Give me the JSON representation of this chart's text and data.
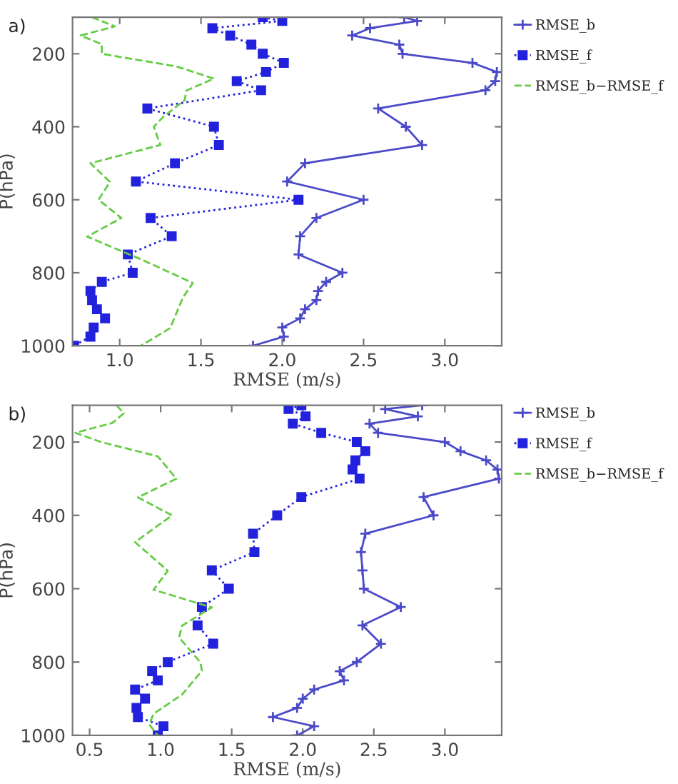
{
  "chart_data": [
    {
      "type": "line",
      "xlabel": "RMSE (m/s)",
      "ylabel": "P(hPa)",
      "annotations": [
        "a)"
      ],
      "xlim": [
        0.71,
        3.35
      ],
      "ylim": [
        1000,
        100
      ],
      "xticks": [
        {
          "value": 1,
          "label": "1.0"
        },
        1.5,
        {
          "value": 2,
          "label": "2.0"
        },
        2.5,
        {
          "value": 3,
          "label": "3.0"
        }
      ],
      "yticks": [
        200,
        400,
        600,
        800,
        1000
      ],
      "legend": "top right",
      "grid": false,
      "orientation": "horizontal",
      "series": [
        {
          "name": "RMSE_b",
          "color": "#4a4ac8",
          "marker": "cross",
          "line_style": "solid",
          "x": [
            100,
            110,
            130,
            150,
            175,
            200,
            225,
            250,
            275,
            300,
            350,
            400,
            450,
            500,
            550,
            600,
            650,
            700,
            750,
            800,
            825,
            850,
            875,
            900,
            925,
            950,
            975,
            1000
          ],
          "values": [
            2.75,
            2.83,
            2.54,
            2.43,
            2.72,
            2.74,
            3.17,
            3.32,
            3.31,
            3.25,
            2.59,
            2.76,
            2.86,
            2.14,
            2.03,
            2.5,
            2.21,
            2.11,
            2.1,
            2.37,
            2.27,
            2.22,
            2.21,
            2.14,
            2.11,
            2.0,
            2.01,
            1.82
          ]
        },
        {
          "name": "RMSE_f",
          "color": "#2222dd",
          "marker": "square",
          "line_style": "dotted",
          "x": [
            100,
            110,
            130,
            150,
            175,
            200,
            225,
            250,
            275,
            300,
            350,
            400,
            450,
            500,
            550,
            600,
            650,
            700,
            750,
            800,
            825,
            850,
            875,
            900,
            925,
            950,
            975,
            1000
          ],
          "values": [
            1.88,
            2.0,
            1.57,
            1.68,
            1.81,
            1.88,
            2.01,
            1.9,
            1.72,
            1.87,
            1.17,
            1.58,
            1.61,
            1.34,
            1.1,
            2.1,
            1.19,
            1.32,
            1.05,
            1.08,
            0.89,
            0.82,
            0.83,
            0.86,
            0.91,
            0.84,
            0.82,
            0.72
          ]
        },
        {
          "name": "RMSE_b−RMSE_f",
          "color": "#66cc44",
          "marker": "none",
          "line_style": "dashed",
          "x": [
            100,
            125,
            150,
            174,
            200,
            235,
            268,
            301,
            327,
            372,
            400,
            450,
            500,
            551,
            600,
            650,
            701,
            763,
            828,
            867,
            952,
            1000
          ],
          "values": [
            0.83,
            0.97,
            0.76,
            0.89,
            0.89,
            1.35,
            1.58,
            1.41,
            1.4,
            1.27,
            1.21,
            1.25,
            0.82,
            0.94,
            0.87,
            1.01,
            0.8,
            1.13,
            1.45,
            1.39,
            1.31,
            1.13
          ]
        }
      ]
    },
    {
      "type": "line",
      "xlabel": "RMSE (m/s)",
      "ylabel": "P(hPa)",
      "annotations": [
        "b)"
      ],
      "xlim": [
        0.38,
        3.4
      ],
      "ylim": [
        1000,
        100
      ],
      "xticks": [
        0.5,
        {
          "value": 1,
          "label": "1.0"
        },
        1.5,
        {
          "value": 2,
          "label": "2.0"
        },
        2.5,
        {
          "value": 3,
          "label": "3.0"
        }
      ],
      "yticks": [
        200,
        400,
        600,
        800,
        1000
      ],
      "legend": "top right",
      "grid": false,
      "orientation": "horizontal",
      "series": [
        {
          "name": "RMSE_b",
          "color": "#4a4ac8",
          "marker": "cross",
          "line_style": "solid",
          "x": [
            100,
            110,
            130,
            150,
            175,
            200,
            225,
            250,
            275,
            300,
            350,
            400,
            450,
            500,
            550,
            600,
            650,
            700,
            750,
            800,
            825,
            850,
            875,
            900,
            925,
            950,
            975,
            1000
          ],
          "values": [
            2.84,
            2.58,
            2.81,
            2.47,
            2.53,
            3.0,
            3.11,
            3.29,
            3.37,
            3.38,
            2.85,
            2.92,
            2.44,
            2.41,
            2.42,
            2.43,
            2.69,
            2.42,
            2.55,
            2.38,
            2.26,
            2.29,
            2.08,
            2.0,
            1.96,
            1.79,
            2.08,
            1.96
          ]
        },
        {
          "name": "RMSE_f",
          "color": "#2222dd",
          "marker": "square",
          "line_style": "dotted",
          "x": [
            100,
            110,
            130,
            150,
            175,
            200,
            225,
            250,
            275,
            300,
            350,
            400,
            450,
            500,
            550,
            600,
            650,
            700,
            750,
            800,
            825,
            850,
            875,
            900,
            925,
            950,
            975,
            1000
          ],
          "values": [
            1.99,
            1.9,
            2.02,
            1.93,
            2.13,
            2.38,
            2.44,
            2.37,
            2.35,
            2.4,
            1.99,
            1.82,
            1.65,
            1.66,
            1.36,
            1.48,
            1.29,
            1.26,
            1.37,
            1.05,
            0.94,
            0.98,
            0.82,
            0.89,
            0.83,
            0.84,
            1.02,
            0.98
          ]
        },
        {
          "name": "RMSE_b−RMSE_f",
          "color": "#66cc44",
          "marker": "none",
          "line_style": "dashed",
          "x": [
            100,
            122,
            148,
            175,
            200,
            239,
            300,
            351,
            400,
            473,
            551,
            603,
            651,
            701,
            733,
            801,
            824,
            889,
            941,
            970,
            1000
          ],
          "values": [
            0.69,
            0.74,
            0.66,
            0.4,
            0.58,
            0.98,
            1.11,
            0.84,
            1.08,
            0.82,
            1.05,
            0.95,
            1.36,
            1.15,
            1.13,
            1.28,
            1.29,
            1.15,
            0.95,
            0.92,
            0.98
          ]
        }
      ]
    }
  ]
}
